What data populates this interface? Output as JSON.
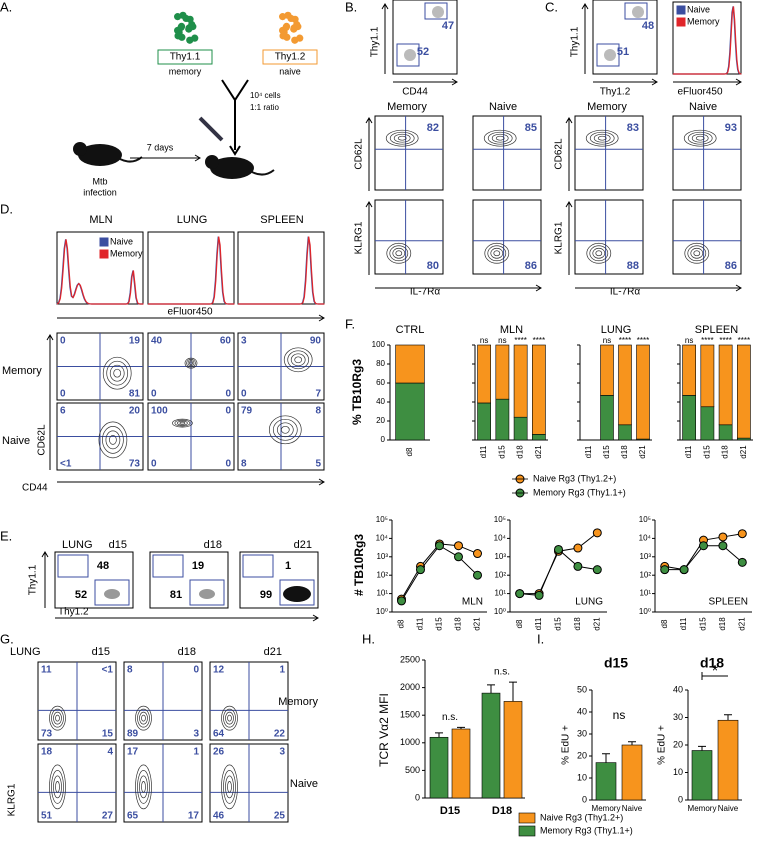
{
  "letters": [
    "A.",
    "B.",
    "C.",
    "D.",
    "E.",
    "F.",
    "G.",
    "H.",
    "I."
  ],
  "a": {
    "memory_marker": "Thy1.1",
    "memory": "memory",
    "naive_marker": "Thy1.2",
    "naive": "naive",
    "cells": "10⁴ cells",
    "ratio": "1:1 ratio",
    "days": "7 days",
    "infection": [
      "Mtb",
      "infection"
    ]
  },
  "b": {
    "gate_y": "Thy1.1",
    "gate_x": "CD44",
    "gates": [
      47,
      52
    ],
    "columns": [
      "Memory",
      "Naive"
    ],
    "row_labels": [
      "CD62L",
      "KLRG1"
    ],
    "x_label": "IL-7Rα",
    "plots": [
      [
        82,
        85
      ],
      [
        80,
        86
      ]
    ]
  },
  "c": {
    "gate_y": "Thy1.1",
    "gate_x": "Thy1.2",
    "gates": [
      48,
      51
    ],
    "hist_x": "eFluor450",
    "legend": [
      "Naive",
      "Memory"
    ],
    "columns": [
      "Memory",
      "Naive"
    ],
    "row_labels": [
      "CD62L",
      "KLRG1"
    ],
    "x_label": "IL-7Rα",
    "plots": [
      [
        83,
        93
      ],
      [
        88,
        86
      ]
    ]
  },
  "d": {
    "tissues": [
      "MLN",
      "LUNG",
      "SPLEEN"
    ],
    "legend": [
      "Naive",
      "Memory"
    ],
    "hist_x": "eFluor450",
    "rows": [
      "Memory",
      "Naive"
    ],
    "y_label": "CD62L",
    "x_label": "CD44",
    "quadrants": [
      [
        [
          0,
          19,
          0,
          81
        ],
        [
          40,
          60,
          0,
          0
        ],
        [
          3,
          90,
          0,
          7
        ]
      ],
      [
        [
          6,
          20,
          "<1",
          73
        ],
        [
          100,
          0,
          0,
          0
        ],
        [
          79,
          8,
          8,
          5
        ]
      ]
    ]
  },
  "e": {
    "tissue": "LUNG",
    "days": [
      "d15",
      "d18",
      "d21"
    ],
    "y_label": "Thy1.1",
    "x_label": "Thy1.2",
    "gates": [
      [
        48,
        52
      ],
      [
        19,
        81
      ],
      [
        1,
        99
      ]
    ]
  },
  "g": {
    "tissue": "LUNG",
    "days": [
      "d15",
      "d18",
      "d21"
    ],
    "rows": [
      "Memory",
      "Naive"
    ],
    "y_label": "KLRG1",
    "quadrants": [
      [
        [
          11,
          "<1",
          73,
          15
        ],
        [
          8,
          0,
          89,
          3
        ],
        [
          12,
          1,
          64,
          22
        ]
      ],
      [
        [
          18,
          4,
          51,
          27
        ],
        [
          17,
          1,
          65,
          17
        ],
        [
          26,
          3,
          46,
          25
        ]
      ]
    ]
  },
  "chart_data": [
    {
      "type": "bar",
      "stacked": true,
      "y_label": "% TB10Rg3",
      "ylim": [
        0,
        100
      ],
      "yticks": [
        0,
        20,
        40,
        60,
        80,
        100
      ],
      "series": [
        {
          "name": "Memory Rg3 (Thy1.1+)",
          "color": "#3e8e41"
        },
        {
          "name": "Naive Rg3 (Thy1.2+)",
          "color": "#f7941d"
        }
      ],
      "groups": [
        {
          "title": "CTRL",
          "categories": [
            "d8"
          ],
          "values": [
            [
              60
            ],
            [
              40
            ]
          ],
          "significance": [
            null
          ]
        },
        {
          "title": "MLN",
          "categories": [
            "d11",
            "d15",
            "d18",
            "d21"
          ],
          "values": [
            [
              39,
              43,
              24,
              6
            ],
            [
              61,
              57,
              76,
              94
            ]
          ],
          "significance": [
            "ns",
            "ns",
            "****",
            "****"
          ]
        },
        {
          "title": "LUNG",
          "categories": [
            "d11",
            "d15",
            "d18",
            "d21"
          ],
          "values": [
            [
              null,
              47,
              16,
              1
            ],
            [
              null,
              53,
              84,
              99
            ]
          ],
          "significance": [
            null,
            "ns",
            "****",
            "****"
          ]
        },
        {
          "title": "SPLEEN",
          "categories": [
            "d11",
            "d15",
            "d18",
            "d21"
          ],
          "values": [
            [
              47,
              35,
              16,
              2
            ],
            [
              53,
              65,
              84,
              98
            ]
          ],
          "significance": [
            "ns",
            "****",
            "****",
            "****"
          ]
        }
      ]
    },
    {
      "type": "line",
      "log_scale": true,
      "y_label": "# TB10Rg3",
      "ylim": [
        1,
        100000
      ],
      "yticks": [
        {
          "value": 1,
          "label": "10⁰"
        },
        {
          "value": 10,
          "label": "10¹"
        },
        {
          "value": 100,
          "label": "10²"
        },
        {
          "value": 1000,
          "label": "10³"
        },
        {
          "value": 10000,
          "label": "10⁴"
        },
        {
          "value": 100000,
          "label": "10⁵"
        }
      ],
      "categories": [
        "d8",
        "d11",
        "d15",
        "d18",
        "d21"
      ],
      "series": [
        {
          "color": "#f7941d"
        },
        {
          "color": "#3e8e41"
        }
      ],
      "groups": [
        {
          "title": "MLN",
          "values": [
            [
              5,
              300,
              5000,
              4000,
              1500
            ],
            [
              4,
              200,
              4000,
              1000,
              100
            ]
          ]
        },
        {
          "title": "LUNG",
          "values": [
            [
              10,
              10,
              2000,
              3000,
              20000
            ],
            [
              10,
              8,
              2500,
              300,
              200
            ]
          ]
        },
        {
          "title": "SPLEEN",
          "values": [
            [
              300,
              200,
              8000,
              12000,
              18000
            ],
            [
              200,
              200,
              4000,
              4000,
              500
            ]
          ]
        }
      ]
    },
    {
      "type": "bar",
      "y_label": "TCR Vα2 MFI",
      "ylim": [
        0,
        2500
      ],
      "yticks": [
        0,
        500,
        1000,
        1500,
        2000,
        2500
      ],
      "categories": [
        "D15",
        "D18"
      ],
      "series": [
        {
          "name": "Naive Rg3 (Thy1.2+)",
          "color": "#f7941d",
          "values": [
            1250,
            1750
          ],
          "errors": [
            30,
            350
          ]
        },
        {
          "name": "Memory Rg3 (Thy1.1+)",
          "color": "#3e8e41",
          "values": [
            1100,
            1900
          ],
          "errors": [
            80,
            150
          ]
        }
      ],
      "annotations": [
        "n.s.",
        "n.s."
      ]
    },
    {
      "type": "bar",
      "title": "d15",
      "y_label": "% EdU +",
      "ylim": [
        0,
        50
      ],
      "yticks": [
        0,
        10,
        20,
        30,
        40,
        50
      ],
      "categories": [
        "Memory",
        "Naive"
      ],
      "colors": [
        "#3e8e41",
        "#f7941d"
      ],
      "values": [
        17,
        25
      ],
      "errors": [
        4,
        1.5
      ],
      "annotation": "ns"
    },
    {
      "type": "bar",
      "title": "d18",
      "y_label": "% EdU +",
      "ylim": [
        0,
        40
      ],
      "yticks": [
        0,
        10,
        20,
        30,
        40
      ],
      "categories": [
        "Memory",
        "Naive"
      ],
      "colors": [
        "#3e8e41",
        "#f7941d"
      ],
      "values": [
        18,
        29
      ],
      "errors": [
        1.5,
        2
      ],
      "annotation": "*"
    }
  ]
}
